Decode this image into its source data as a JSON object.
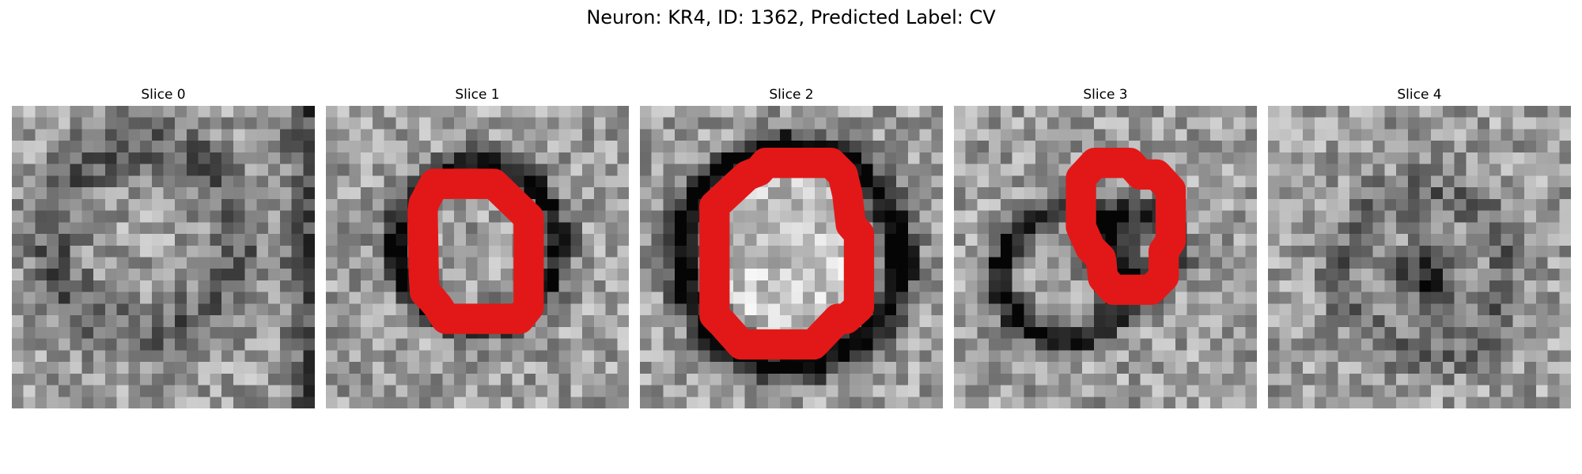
{
  "figure": {
    "title": "Neuron: KR4, ID: 1362, Predicted Label: CV"
  },
  "colors": {
    "contour": "#e21818"
  },
  "slices": [
    {
      "title": "Slice 0",
      "has_contour": false
    },
    {
      "title": "Slice 1",
      "has_contour": true
    },
    {
      "title": "Slice 2",
      "has_contour": true
    },
    {
      "title": "Slice 3",
      "has_contour": true
    },
    {
      "title": "Slice 4",
      "has_contour": false
    }
  ]
}
